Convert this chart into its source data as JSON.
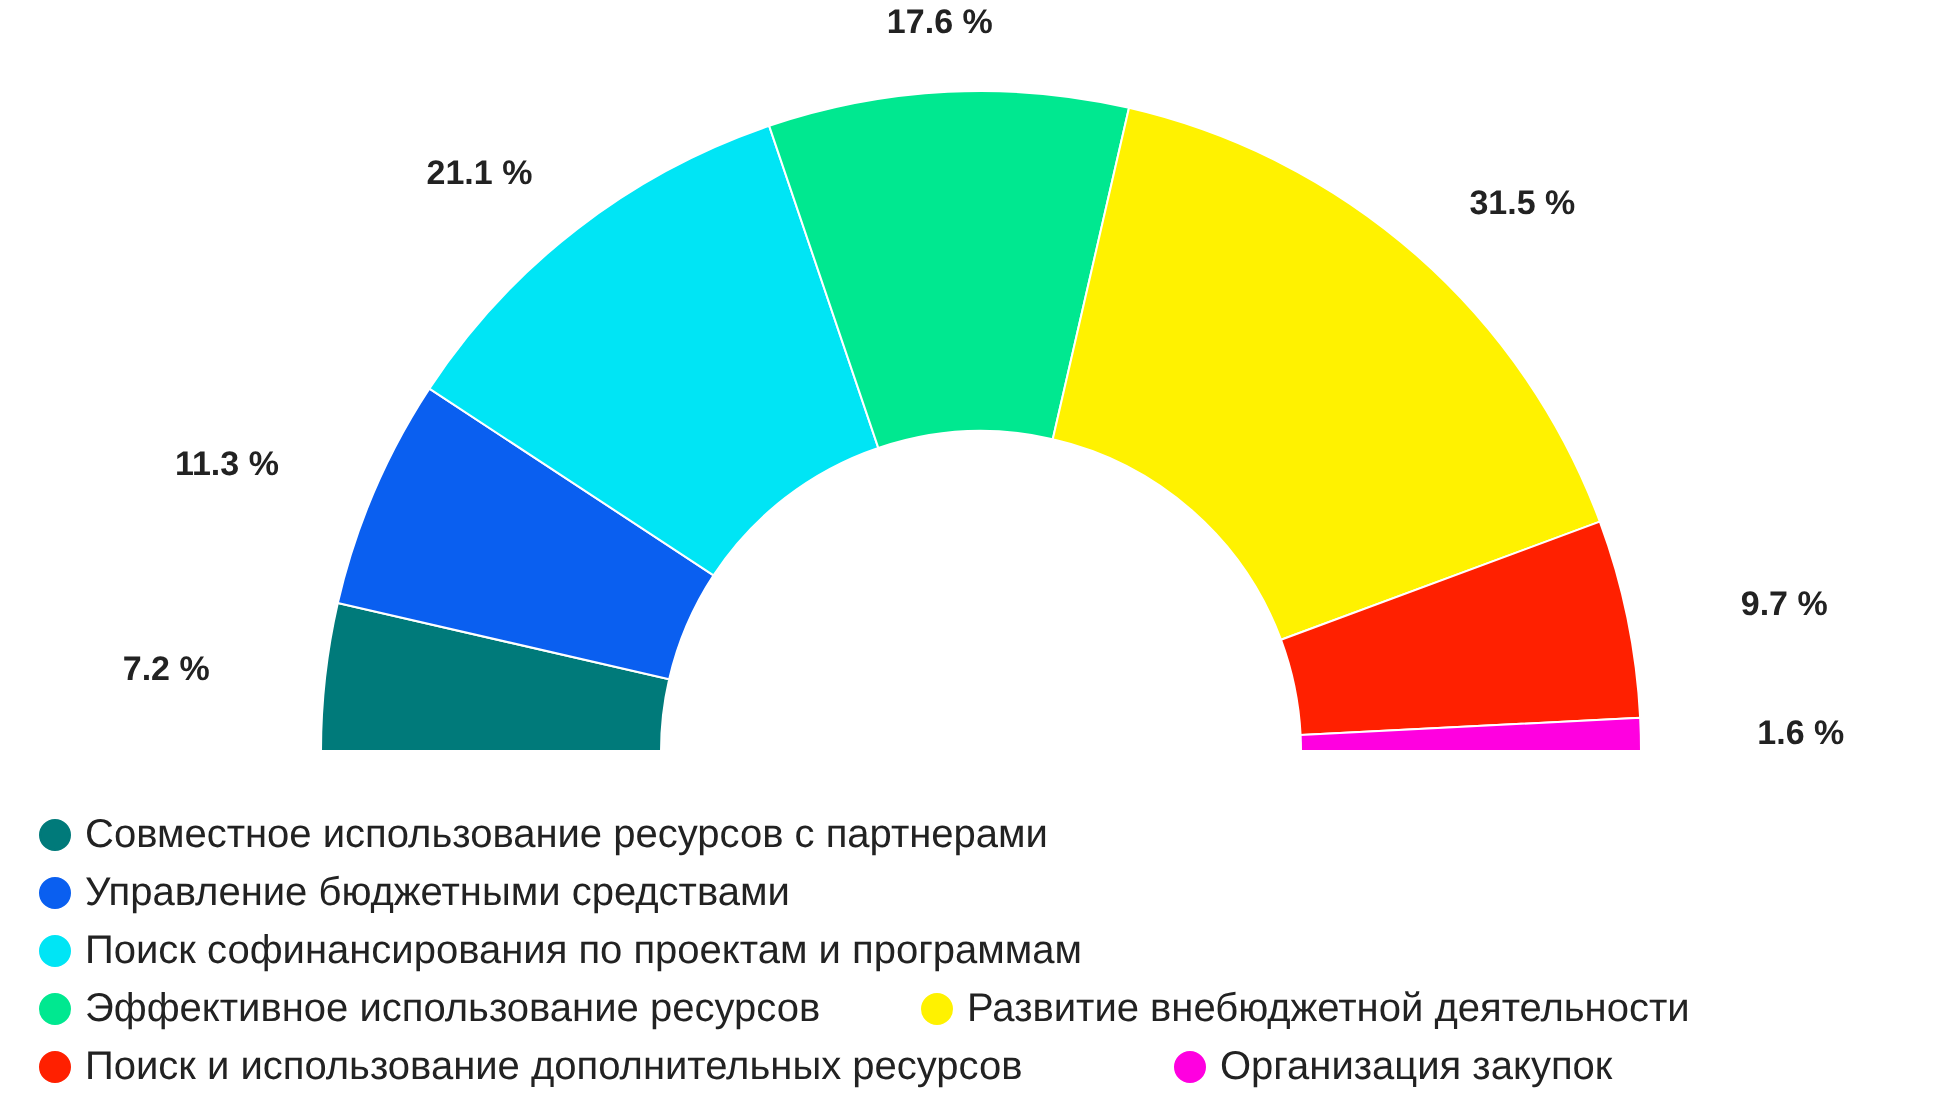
{
  "chart_data": {
    "type": "donut",
    "categories": [
      "Совместное использование ресурсов с партнерами",
      "Управление бюджетными средствами",
      "Поиск софинансирования по проектам и программам",
      "Эффективное использование ресурсов",
      "Развитие внебюджетной деятельности",
      "Поиск и использование дополнительных ресурсов",
      "Организация закупок"
    ],
    "values": [
      7.2,
      11.3,
      21.1,
      17.6,
      31.5,
      9.7,
      1.6
    ],
    "value_labels": [
      "7.2 %",
      "11.3 %",
      "21.1 %",
      "17.6 %",
      "31.5 %",
      "9.7 %",
      "1.6 %"
    ],
    "colors": [
      "#007a7a",
      "#0a5ff0",
      "#00e5f5",
      "#00e890",
      "#fff200",
      "#ff2000",
      "#ff00e0"
    ],
    "legend": "bottom"
  }
}
